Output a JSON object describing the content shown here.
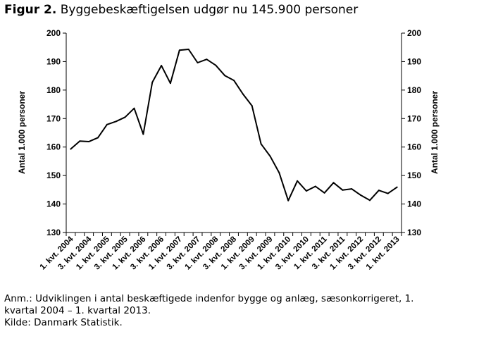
{
  "figure": {
    "label": "Figur 2.",
    "title": "Byggebeskæftigelsen udgør nu 145.900 personer"
  },
  "note": {
    "line1": "Anm.: Udviklingen i antal beskæftigede indenfor bygge og anlæg, sæsonkorrigeret, 1.",
    "line2": "kvartal 2004 – 1. kvartal 2013.",
    "source": "Kilde: Danmark Statistik."
  },
  "chart_data": {
    "type": "line",
    "title": "Byggebeskæftigelsen udgør nu 145.900 personer",
    "ylabel_left": "Antal 1.000 personer",
    "ylabel_right": "Antal 1.000 personer",
    "ylim": [
      130,
      200
    ],
    "yticks": [
      130,
      140,
      150,
      160,
      170,
      180,
      190,
      200
    ],
    "grid": false,
    "line_color": "#000000",
    "x": [
      "1. kvt. 2004",
      "2. kvt. 2004",
      "3. kvt. 2004",
      "4. kvt. 2004",
      "1. kvt. 2005",
      "2. kvt. 2005",
      "3. kvt. 2005",
      "4. kvt. 2005",
      "1. kvt. 2006",
      "2. kvt. 2006",
      "3. kvt. 2006",
      "4. kvt. 2006",
      "1. kvt. 2007",
      "2. kvt. 2007",
      "3. kvt. 2007",
      "4. kvt. 2007",
      "1. kvt. 2008",
      "2. kvt. 2008",
      "3. kvt. 2008",
      "4. kvt. 2008",
      "1. kvt. 2009",
      "2. kvt. 2009",
      "3. kvt. 2009",
      "4. kvt. 2009",
      "1. kvt. 2010",
      "2. kvt. 2010",
      "3. kvt. 2010",
      "4. kvt. 2010",
      "1. kvt. 2011",
      "2. kvt. 2011",
      "3. kvt. 2011",
      "4. kvt. 2011",
      "1. kvt. 2012",
      "2. kvt. 2012",
      "3. kvt. 2012",
      "4. kvt. 2012",
      "1. kvt. 2013"
    ],
    "xtick_labels": [
      "1. kvt. 2004",
      "3. kvt. 2004",
      "1. kvt. 2005",
      "3. kvt. 2005",
      "1. kvt. 2006",
      "3. kvt. 2006",
      "1. kvt. 2007",
      "3. kvt. 2007",
      "1. kvt. 2008",
      "3. kvt. 2008",
      "1. kvt. 2009",
      "3. kvt. 2009",
      "1. kvt. 2010",
      "3. kvt. 2010",
      "1. kvt. 2011",
      "3. kvt. 2011",
      "1. kvt. 2012",
      "3. kvt. 2012",
      "1. kvt. 2013"
    ],
    "values": [
      159.3,
      162.1,
      161.9,
      163.3,
      167.9,
      169.0,
      170.5,
      173.6,
      164.5,
      182.7,
      188.6,
      182.4,
      194.0,
      194.3,
      189.6,
      190.8,
      188.7,
      185.1,
      183.4,
      178.6,
      174.5,
      161.1,
      156.8,
      151.0,
      141.2,
      148.1,
      144.6,
      146.2,
      143.9,
      147.5,
      144.9,
      145.3,
      143.1,
      141.3,
      144.8,
      143.7,
      145.9
    ]
  }
}
